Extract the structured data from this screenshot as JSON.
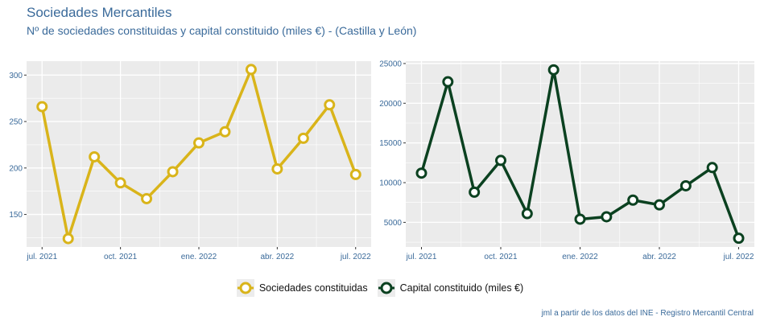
{
  "title": "Sociedades Mercantiles",
  "subtitle": "Nº de sociedades constituidas y capital constituido (miles €) - (Castilla y León)",
  "caption": "jml a partir de los datos del INE - Registro Mercantil Central",
  "colors": {
    "panel": "#ebebeb",
    "grid": "#ffffff",
    "tick": "#3a6a9a",
    "bg": "#ffffff"
  },
  "legend": [
    {
      "label": "Sociedades constituidas",
      "color": "#d9b41a"
    },
    {
      "label": "Capital constituido (miles €)",
      "color": "#0b4120"
    }
  ],
  "chart_data": [
    {
      "type": "line",
      "x": [
        "2021-07",
        "2021-08",
        "2021-09",
        "2021-10",
        "2021-11",
        "2021-12",
        "2022-01",
        "2022-02",
        "2022-03",
        "2022-04",
        "2022-05",
        "2022-06",
        "2022-07"
      ],
      "series": [
        {
          "name": "Sociedades constituidas",
          "values": [
            266,
            124,
            212,
            184,
            167,
            196,
            227,
            239,
            306,
            199,
            232,
            268,
            193
          ],
          "color": "#d9b41a"
        }
      ],
      "xticks": [
        {
          "label": "jul. 2021",
          "index": 0
        },
        {
          "label": "oct. 2021",
          "index": 3
        },
        {
          "label": "ene. 2022",
          "index": 6
        },
        {
          "label": "abr. 2022",
          "index": 9
        },
        {
          "label": "jul. 2022",
          "index": 12
        }
      ],
      "yticks": [
        150,
        200,
        250,
        300
      ],
      "ylim": [
        115,
        315
      ],
      "grid": true
    },
    {
      "type": "line",
      "x": [
        "2021-07",
        "2021-08",
        "2021-09",
        "2021-10",
        "2021-11",
        "2021-12",
        "2022-01",
        "2022-02",
        "2022-03",
        "2022-04",
        "2022-05",
        "2022-06",
        "2022-07"
      ],
      "series": [
        {
          "name": "Capital constituido (miles €)",
          "values": [
            11200,
            22700,
            8800,
            12800,
            6100,
            24200,
            5400,
            5700,
            7800,
            7200,
            9600,
            11900,
            3000
          ],
          "color": "#0b4120"
        }
      ],
      "xticks": [
        {
          "label": "jul. 2021",
          "index": 0
        },
        {
          "label": "oct. 2021",
          "index": 3
        },
        {
          "label": "ene. 2022",
          "index": 6
        },
        {
          "label": "abr. 2022",
          "index": 9
        },
        {
          "label": "jul. 2022",
          "index": 12
        }
      ],
      "yticks": [
        5000,
        10000,
        15000,
        20000,
        25000
      ],
      "ylim": [
        1900,
        25300
      ],
      "grid": true
    }
  ]
}
